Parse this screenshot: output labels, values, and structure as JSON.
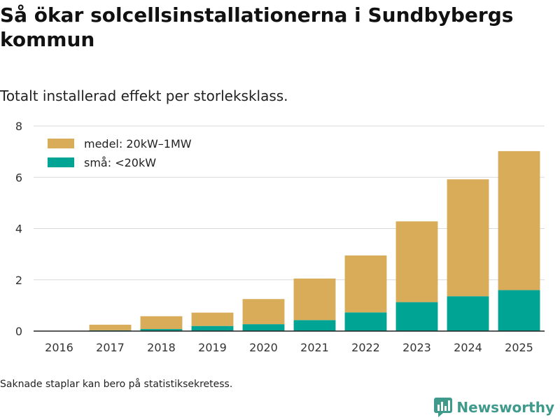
{
  "header": {
    "title": "Så ökar solcellsinstallationerna i Sundbybergs kommun",
    "subtitle": "Totalt installerad effekt per storleksklass."
  },
  "footer": {
    "note": "Saknade staplar kan bero på statistiksekretess.",
    "brand": "Newsworthy"
  },
  "colors": {
    "medel": "#d9ac5a",
    "sma": "#00a495",
    "grid": "#d9d9d9",
    "axis": "#222222",
    "brand": "#3f9a8c"
  },
  "chart_data": {
    "type": "bar",
    "stacked": true,
    "title": "Så ökar solcellsinstallationerna i Sundbybergs kommun",
    "subtitle": "Totalt installerad effekt per storleksklass.",
    "xlabel": "",
    "ylabel": "",
    "ylim": [
      0,
      8
    ],
    "yticks": [
      0,
      2,
      4,
      6,
      8
    ],
    "grid": true,
    "legend_position": "top-left",
    "categories": [
      "2016",
      "2017",
      "2018",
      "2019",
      "2020",
      "2021",
      "2022",
      "2023",
      "2024",
      "2025"
    ],
    "series": [
      {
        "name": "små: <20kW",
        "key": "sma",
        "values": [
          0,
          0.03,
          0.08,
          0.2,
          0.27,
          0.43,
          0.73,
          1.13,
          1.36,
          1.6
        ]
      },
      {
        "name": "medel: 20kW–1MW",
        "key": "medel",
        "values": [
          0,
          0.22,
          0.5,
          0.52,
          0.98,
          1.62,
          2.22,
          3.15,
          4.56,
          5.42
        ]
      }
    ],
    "legend": [
      {
        "label": "medel: 20kW–1MW",
        "key": "medel"
      },
      {
        "label": "små: <20kW",
        "key": "sma"
      }
    ]
  }
}
